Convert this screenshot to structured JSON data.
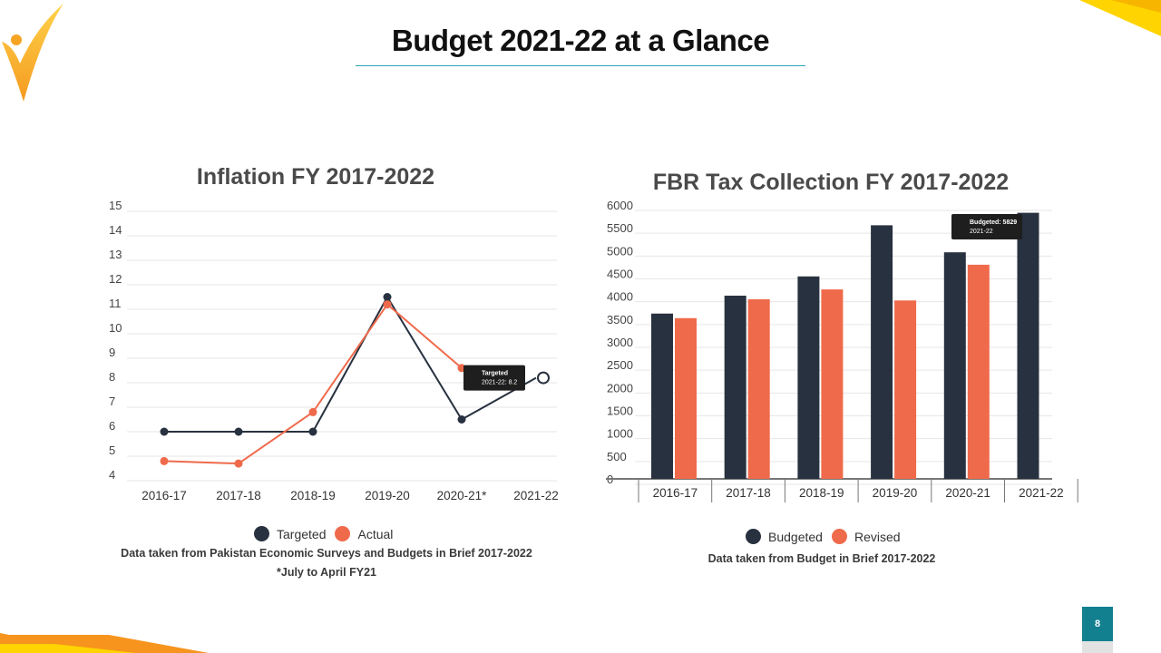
{
  "slide": {
    "title": "Budget 2021-22 at a Glance",
    "page_number": "8",
    "colors": {
      "accent_teal": "#2aa6b5",
      "accent_orange": "#f7941d",
      "accent_yellow": "#ffd400"
    }
  },
  "logo": {
    "icon": "check-figure-logo-icon"
  },
  "chart_data": [
    {
      "type": "line",
      "title": "Inflation FY 2017-2022",
      "categories": [
        "2016-17",
        "2017-18",
        "2018-19",
        "2019-20",
        "2020-21*",
        "2021-22"
      ],
      "y_ticks": [
        "15",
        "14",
        "13",
        "12",
        "11",
        "10",
        "9",
        "8",
        "7",
        "6",
        "5",
        "4"
      ],
      "ylim": [
        4,
        15
      ],
      "grid": true,
      "series": [
        {
          "name": "Targeted",
          "color": "#28313f",
          "values": [
            6,
            6,
            6,
            11.5,
            6.5,
            8.2
          ]
        },
        {
          "name": "Actual",
          "color": "#ef6a4b",
          "values": [
            4.8,
            4.7,
            6.8,
            11.2,
            8.6,
            null
          ]
        }
      ],
      "tooltip": {
        "title": "Targeted",
        "text": "2021-22: 8.2"
      },
      "notes": [
        "Data taken from Pakistan Economic Surveys and Budgets in Brief 2017-2022",
        "*July to April FY21"
      ],
      "legend": "bottom"
    },
    {
      "type": "bar",
      "title": "FBR Tax Collection FY 2017-2022",
      "categories": [
        "2016-17",
        "2017-18",
        "2018-19",
        "2019-20",
        "2020-21",
        "2021-22"
      ],
      "y_ticks": [
        "6000",
        "5500",
        "5000",
        "4500",
        "4000",
        "3500",
        "3000",
        "2500",
        "2000",
        "1500",
        "1000",
        "500",
        "0"
      ],
      "ylim": [
        0,
        6000
      ],
      "grid": true,
      "series": [
        {
          "name": "Budgeted",
          "color": "#28313f",
          "values": [
            3621,
            4013,
            4435,
            5555,
            4963,
            5829
          ]
        },
        {
          "name": "Revised",
          "color": "#ef6a4b",
          "values": [
            3521,
            3935,
            4150,
            3908,
            4691,
            null
          ]
        }
      ],
      "tooltip": {
        "title": "Budgeted: 5829",
        "text": "2021-22"
      },
      "notes": [
        "Data taken from Budget in Brief 2017-2022"
      ],
      "legend": "bottom"
    }
  ]
}
